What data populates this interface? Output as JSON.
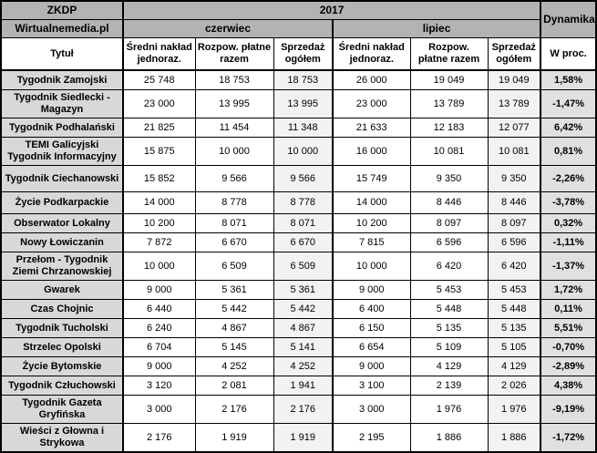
{
  "header": {
    "source": "ZKDP",
    "brand": "Wirtualnemedia.pl",
    "year": "2017",
    "dynamics": "Dynamika",
    "month_june": "czerwiec",
    "month_july": "lipiec",
    "title_col": "Tytuł",
    "col_avg_print": "Średni nakład jednoraz.",
    "col_paid_dist": "Rozpow. płatne razem",
    "col_total_sales": "Sprzedaż ogółem",
    "col_percent": "W proc."
  },
  "colors": {
    "header_gray": "#b3b3b3",
    "title_gray": "#d8d8d8",
    "sales_gray": "#f2f2f2",
    "dyn_gray": "#e0e0e0",
    "border": "#000000"
  },
  "rows": [
    {
      "title": "Tygodnik Zamojski",
      "june": [
        "25 748",
        "18 753",
        "18 753"
      ],
      "july": [
        "26 000",
        "19 049",
        "19 049"
      ],
      "dyn": "1,58%"
    },
    {
      "title": "Tygodnik Siedlecki - Magazyn",
      "june": [
        "23 000",
        "13 995",
        "13 995"
      ],
      "july": [
        "23 000",
        "13 789",
        "13 789"
      ],
      "dyn": "-1,47%"
    },
    {
      "title": "Tygodnik Podhalański",
      "june": [
        "21 825",
        "11 454",
        "11 348"
      ],
      "july": [
        "21 633",
        "12 183",
        "12 077"
      ],
      "dyn": "6,42%"
    },
    {
      "title": "TEMI Galicyjski Tygodnik Informacyjny",
      "june": [
        "15 875",
        "10 000",
        "10 000"
      ],
      "july": [
        "16 000",
        "10 081",
        "10 081"
      ],
      "dyn": "0,81%"
    },
    {
      "title": "Tygodnik Ciechanowski",
      "june": [
        "15 852",
        "9 566",
        "9 566"
      ],
      "july": [
        "15 749",
        "9 350",
        "9 350"
      ],
      "dyn": "-2,26%"
    },
    {
      "title": "Życie Podkarpackie",
      "june": [
        "14 000",
        "8 778",
        "8 778"
      ],
      "july": [
        "14 000",
        "8 446",
        "8 446"
      ],
      "dyn": "-3,78%"
    },
    {
      "title": "Obserwator Lokalny",
      "june": [
        "10 200",
        "8 071",
        "8 071"
      ],
      "july": [
        "10 200",
        "8 097",
        "8 097"
      ],
      "dyn": "0,32%"
    },
    {
      "title": "Nowy Łowiczanin",
      "june": [
        "7 872",
        "6 670",
        "6 670"
      ],
      "july": [
        "7 815",
        "6 596",
        "6 596"
      ],
      "dyn": "-1,11%"
    },
    {
      "title": "Przełom - Tygodnik Ziemi Chrzanowskiej",
      "june": [
        "10 000",
        "6 509",
        "6 509"
      ],
      "july": [
        "10 000",
        "6 420",
        "6 420"
      ],
      "dyn": "-1,37%"
    },
    {
      "title": "Gwarek",
      "june": [
        "9 000",
        "5 361",
        "5 361"
      ],
      "july": [
        "9 000",
        "5 453",
        "5 453"
      ],
      "dyn": "1,72%"
    },
    {
      "title": "Czas Chojnic",
      "june": [
        "6 440",
        "5 442",
        "5 442"
      ],
      "july": [
        "6 400",
        "5 448",
        "5 448"
      ],
      "dyn": "0,11%"
    },
    {
      "title": "Tygodnik Tucholski",
      "june": [
        "6 240",
        "4 867",
        "4 867"
      ],
      "july": [
        "6 150",
        "5 135",
        "5 135"
      ],
      "dyn": "5,51%"
    },
    {
      "title": "Strzelec Opolski",
      "june": [
        "6 704",
        "5 145",
        "5 141"
      ],
      "july": [
        "6 654",
        "5 109",
        "5 105"
      ],
      "dyn": "-0,70%"
    },
    {
      "title": "Życie Bytomskie",
      "june": [
        "9 000",
        "4 252",
        "4 252"
      ],
      "july": [
        "9 000",
        "4 129",
        "4 129"
      ],
      "dyn": "-2,89%"
    },
    {
      "title": "Tygodnik Człuchowski",
      "june": [
        "3 120",
        "2 081",
        "1 941"
      ],
      "july": [
        "3 100",
        "2 139",
        "2 026"
      ],
      "dyn": "4,38%"
    },
    {
      "title": "Tygodnik Gazeta Gryfińska",
      "june": [
        "3 000",
        "2 176",
        "2 176"
      ],
      "july": [
        "3 000",
        "1 976",
        "1 976"
      ],
      "dyn": "-9,19%"
    },
    {
      "title": "Wieści z Głowna i Strykowa",
      "june": [
        "2 176",
        "1 919",
        "1 919"
      ],
      "july": [
        "2 195",
        "1 886",
        "1 886"
      ],
      "dyn": "-1,72%"
    }
  ]
}
